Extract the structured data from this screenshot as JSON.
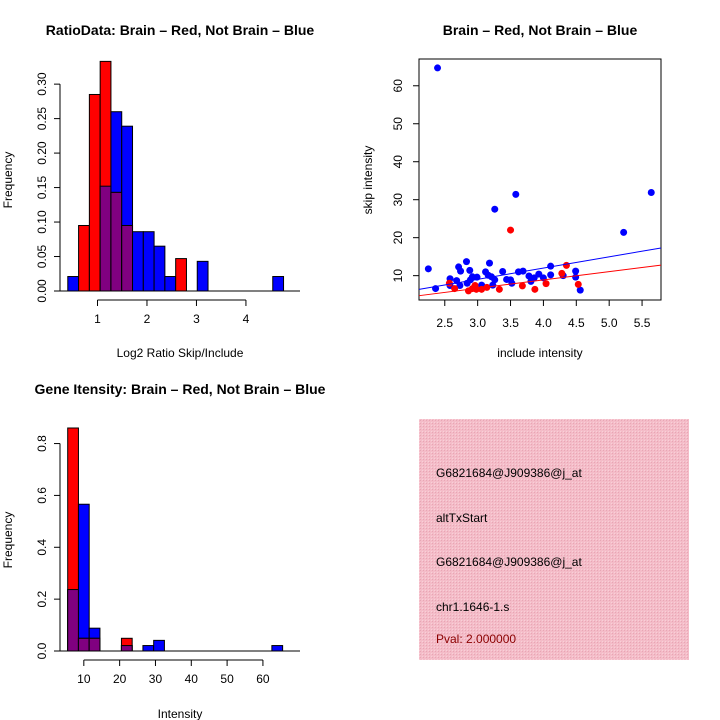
{
  "colors": {
    "red": "#ff0000",
    "blue": "#0000ff",
    "purple": "#800080",
    "panel": "#f4bcc8",
    "pval": "#8b0000"
  },
  "chart_data": [
    {
      "type": "bar",
      "subtype": "overlaid-histogram",
      "title": "RatioData: Brain – Red, Not Brain – Blue",
      "xlabel": "Log2 Ratio Skip/Include",
      "ylabel": "Frequency",
      "bin_start": 0.4,
      "bin_width": 0.218,
      "xlim": [
        0,
        4.85
      ],
      "ylim": [
        0,
        0.335
      ],
      "xticks": [
        1,
        2,
        3,
        4
      ],
      "xtick_labels": [
        "1",
        "2",
        "3",
        "4"
      ],
      "yticks": [
        0,
        0.05,
        0.1,
        0.15,
        0.2,
        0.25,
        0.3
      ],
      "ytick_labels": [
        "0.00",
        "0.05",
        "0.10",
        "0.15",
        "0.20",
        "0.25",
        "0.30"
      ],
      "series": [
        {
          "name": "Not Brain",
          "color": "blue",
          "values": [
            0.021,
            0,
            0,
            0.152,
            0.26,
            0.239,
            0.086,
            0.086,
            0.065,
            0.021,
            0,
            0,
            0.043,
            0,
            0,
            0,
            0,
            0,
            0,
            0.021
          ]
        },
        {
          "name": "Brain",
          "color": "red",
          "values": [
            0,
            0.095,
            0.285,
            0.333,
            0.143,
            0.095,
            0,
            0,
            0,
            0,
            0.047,
            0,
            0,
            0,
            0,
            0,
            0,
            0,
            0,
            0
          ]
        }
      ]
    },
    {
      "type": "scatter",
      "title": "Brain – Red, Not Brain – Blue",
      "xlabel": "include intensity",
      "ylabel": "skip intensity",
      "xlim": [
        2.108,
        5.788
      ],
      "ylim": [
        3.59,
        67.05
      ],
      "xticks": [
        2.5,
        3.0,
        3.5,
        4.0,
        4.5,
        5.0,
        5.5
      ],
      "xtick_labels": [
        "2.5",
        "3.0",
        "3.5",
        "4.0",
        "4.5",
        "5.0",
        "5.5"
      ],
      "yticks": [
        10,
        20,
        30,
        40,
        50,
        60
      ],
      "ytick_labels": [
        "10",
        "20",
        "30",
        "40",
        "50",
        "60"
      ],
      "series": [
        {
          "name": "Not Brain",
          "color": "blue",
          "fit": {
            "slope": 2.96,
            "intercept": 0.16
          },
          "points": [
            [
              2.25,
              11.8
            ],
            [
              2.39,
              64.7
            ],
            [
              2.36,
              6.6
            ],
            [
              2.58,
              9.2
            ],
            [
              2.58,
              7.4
            ],
            [
              2.68,
              8.7
            ],
            [
              2.71,
              12.3
            ],
            [
              2.74,
              11.2
            ],
            [
              2.73,
              7.4
            ],
            [
              2.83,
              13.7
            ],
            [
              2.84,
              8.0
            ],
            [
              2.88,
              11.4
            ],
            [
              2.89,
              8.9
            ],
            [
              2.92,
              9.7
            ],
            [
              2.99,
              9.6
            ],
            [
              3.06,
              7.5
            ],
            [
              3.12,
              11.0
            ],
            [
              3.18,
              13.3
            ],
            [
              3.16,
              10.1
            ],
            [
              3.21,
              9.7
            ],
            [
              3.26,
              27.5
            ],
            [
              3.26,
              8.9
            ],
            [
              3.23,
              7.5
            ],
            [
              3.38,
              11.1
            ],
            [
              3.44,
              9.0
            ],
            [
              3.5,
              8.9
            ],
            [
              3.52,
              8.0
            ],
            [
              3.58,
              31.4
            ],
            [
              3.62,
              11.0
            ],
            [
              3.69,
              11.2
            ],
            [
              3.78,
              9.9
            ],
            [
              3.81,
              8.5
            ],
            [
              3.86,
              9.4
            ],
            [
              3.93,
              10.4
            ],
            [
              4.0,
              9.4
            ],
            [
              4.11,
              12.5
            ],
            [
              4.11,
              10.2
            ],
            [
              4.3,
              10.0
            ],
            [
              4.49,
              11.2
            ],
            [
              4.49,
              9.6
            ],
            [
              4.56,
              6.2
            ],
            [
              5.22,
              21.4
            ],
            [
              5.64,
              31.9
            ]
          ]
        },
        {
          "name": "Brain",
          "color": "red",
          "fit": {
            "slope": 2.19,
            "intercept": 0.11
          },
          "points": [
            [
              2.57,
              8.0
            ],
            [
              2.65,
              6.6
            ],
            [
              2.86,
              6.0
            ],
            [
              2.92,
              6.6
            ],
            [
              2.96,
              7.4
            ],
            [
              2.98,
              6.4
            ],
            [
              3.06,
              6.4
            ],
            [
              3.14,
              6.9
            ],
            [
              3.33,
              6.4
            ],
            [
              3.5,
              22.0
            ],
            [
              3.68,
              7.3
            ],
            [
              3.87,
              6.4
            ],
            [
              4.04,
              7.9
            ],
            [
              4.28,
              10.6
            ],
            [
              4.35,
              12.7
            ],
            [
              4.53,
              7.7
            ]
          ]
        }
      ]
    },
    {
      "type": "bar",
      "subtype": "overlaid-histogram",
      "title": "Gene Itensity: Brain – Red, Not Brain – Blue",
      "xlabel": "Intensity",
      "ylabel": "Frequency",
      "bin_start": 5.5,
      "bin_width": 3.0,
      "xlim": [
        0,
        67
      ],
      "ylim": [
        0,
        0.86
      ],
      "xticks": [
        10,
        20,
        30,
        40,
        50,
        60
      ],
      "xtick_labels": [
        "10",
        "20",
        "30",
        "40",
        "50",
        "60"
      ],
      "yticks": [
        0,
        0.2,
        0.4,
        0.6,
        0.8
      ],
      "ytick_labels": [
        "0.0",
        "0.2",
        "0.4",
        "0.6",
        "0.8"
      ],
      "series": [
        {
          "name": "Not Brain",
          "color": "blue",
          "values": [
            0.237,
            0.566,
            0.088,
            0,
            0,
            0.021,
            0,
            0.021,
            0.041,
            0,
            0,
            0,
            0,
            0,
            0,
            0,
            0,
            0,
            0,
            0.021
          ]
        },
        {
          "name": "Brain",
          "color": "red",
          "values": [
            0.86,
            0.049,
            0.049,
            0,
            0,
            0.049,
            0,
            0,
            0,
            0,
            0,
            0,
            0,
            0,
            0,
            0,
            0,
            0,
            0,
            0
          ]
        }
      ]
    }
  ],
  "info_panel": {
    "probe1": "G6821684@J909386@j_at",
    "event_type": "altTxStart",
    "probe2": "G6821684@J909386@j_at",
    "location": "chr1.1646-1.s",
    "pval": "Pval: 2.000000"
  }
}
